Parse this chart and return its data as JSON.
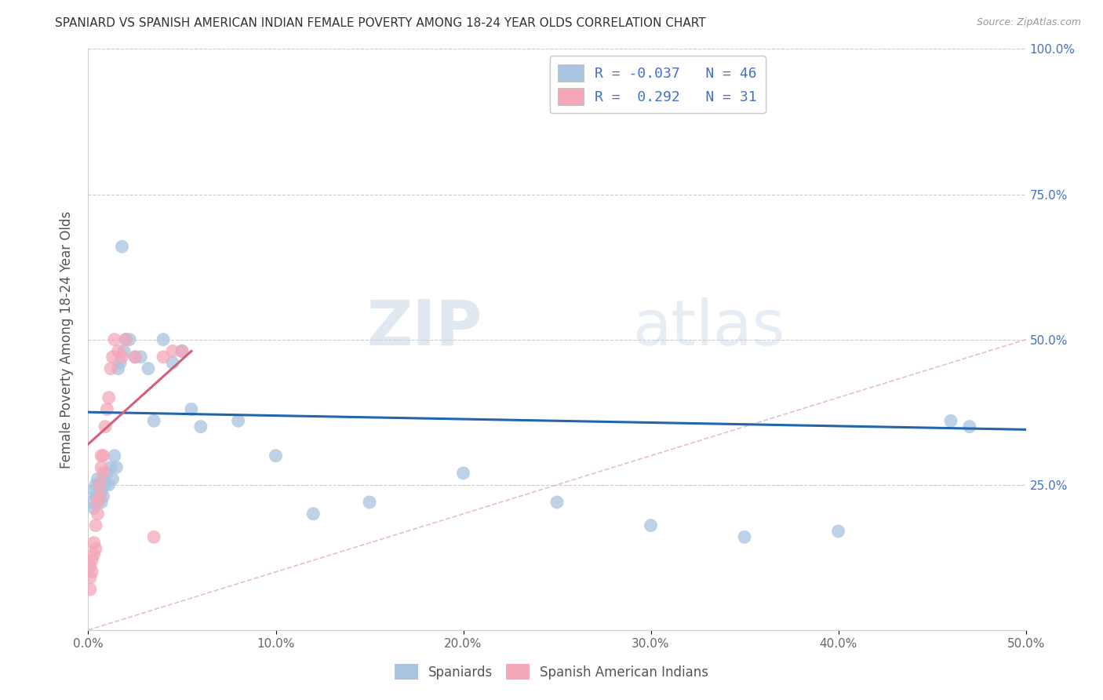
{
  "title": "SPANIARD VS SPANISH AMERICAN INDIAN FEMALE POVERTY AMONG 18-24 YEAR OLDS CORRELATION CHART",
  "source": "Source: ZipAtlas.com",
  "ylabel": "Female Poverty Among 18-24 Year Olds",
  "xlim": [
    0.0,
    0.5
  ],
  "ylim": [
    0.0,
    1.0
  ],
  "xtick_labels": [
    "0.0%",
    "10.0%",
    "20.0%",
    "30.0%",
    "40.0%",
    "50.0%"
  ],
  "xtick_vals": [
    0.0,
    0.1,
    0.2,
    0.3,
    0.4,
    0.5
  ],
  "ytick_labels": [
    "",
    "25.0%",
    "50.0%",
    "75.0%",
    "100.0%"
  ],
  "ytick_vals": [
    0.0,
    0.25,
    0.5,
    0.75,
    1.0
  ],
  "blue_color": "#a8c4e0",
  "pink_color": "#f4a7b9",
  "blue_line_color": "#2166ac",
  "pink_line_color": "#d45f7a",
  "diag_line_color": "#e0b0c0",
  "legend_label_blue": "R = -0.037   N = 46",
  "legend_label_pink": "R =  0.292   N = 31",
  "legend_label_spaniards": "Spaniards",
  "legend_label_sai": "Spanish American Indians",
  "watermark_zip": "ZIP",
  "watermark_atlas": "atlas",
  "blue_scatter_x": [
    0.002,
    0.003,
    0.003,
    0.004,
    0.004,
    0.005,
    0.005,
    0.006,
    0.006,
    0.007,
    0.007,
    0.008,
    0.008,
    0.009,
    0.01,
    0.011,
    0.012,
    0.013,
    0.014,
    0.015,
    0.016,
    0.017,
    0.018,
    0.019,
    0.02,
    0.022,
    0.025,
    0.028,
    0.032,
    0.035,
    0.04,
    0.045,
    0.05,
    0.055,
    0.06,
    0.08,
    0.1,
    0.12,
    0.15,
    0.2,
    0.25,
    0.3,
    0.35,
    0.4,
    0.46,
    0.47
  ],
  "blue_scatter_y": [
    0.22,
    0.24,
    0.21,
    0.23,
    0.25,
    0.22,
    0.26,
    0.23,
    0.25,
    0.24,
    0.22,
    0.26,
    0.23,
    0.25,
    0.27,
    0.25,
    0.28,
    0.26,
    0.3,
    0.28,
    0.45,
    0.46,
    0.66,
    0.48,
    0.5,
    0.5,
    0.47,
    0.47,
    0.45,
    0.36,
    0.5,
    0.46,
    0.48,
    0.38,
    0.35,
    0.36,
    0.3,
    0.2,
    0.22,
    0.27,
    0.22,
    0.18,
    0.16,
    0.17,
    0.36,
    0.35
  ],
  "pink_scatter_x": [
    0.001,
    0.001,
    0.001,
    0.002,
    0.002,
    0.003,
    0.003,
    0.004,
    0.004,
    0.005,
    0.005,
    0.006,
    0.006,
    0.007,
    0.007,
    0.008,
    0.008,
    0.009,
    0.01,
    0.011,
    0.012,
    0.013,
    0.014,
    0.016,
    0.018,
    0.02,
    0.025,
    0.035,
    0.04,
    0.045,
    0.05
  ],
  "pink_scatter_y": [
    0.07,
    0.09,
    0.11,
    0.12,
    0.1,
    0.13,
    0.15,
    0.14,
    0.18,
    0.2,
    0.22,
    0.23,
    0.25,
    0.28,
    0.3,
    0.3,
    0.27,
    0.35,
    0.38,
    0.4,
    0.45,
    0.47,
    0.5,
    0.48,
    0.47,
    0.5,
    0.47,
    0.16,
    0.47,
    0.48,
    0.48
  ],
  "blue_line_x0": 0.0,
  "blue_line_y0": 0.375,
  "blue_line_x1": 0.5,
  "blue_line_y1": 0.345,
  "pink_line_x0": 0.0,
  "pink_line_y0": 0.32,
  "pink_line_x1": 0.055,
  "pink_line_y1": 0.48
}
